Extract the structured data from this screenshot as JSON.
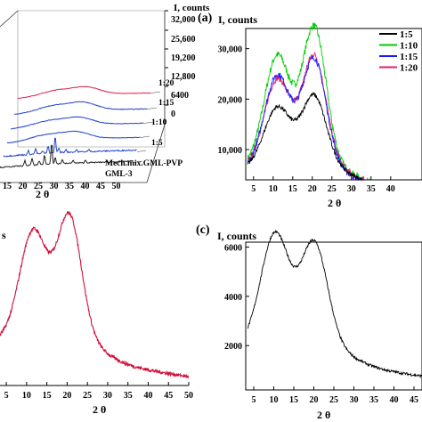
{
  "chart_data": [
    {
      "panel": "",
      "type": "line",
      "ylabel": "I, counts",
      "xlabel": "2 θ",
      "x_ticks": [
        "15",
        "20",
        "25",
        "30",
        "35",
        "40",
        "45",
        "50"
      ],
      "z_ticks": [
        "32,000",
        "25,600",
        "19,200",
        "12,800",
        "6400",
        "0"
      ],
      "series_labels": [
        "1:20",
        "1:15",
        "1:10",
        "1:5",
        "Mech.mix.GML-PVP",
        "GML-3"
      ]
    },
    {
      "panel": "(a)",
      "type": "line",
      "ylabel": "I, counts",
      "xlabel": "2 θ",
      "x_ticks": [
        "5",
        "10",
        "15",
        "20",
        "25",
        "30",
        "35",
        "40"
      ],
      "y_ticks": [
        "10,000",
        "20,000",
        "30,000"
      ],
      "ylim": [
        4000,
        34000
      ],
      "xlim": [
        3,
        48
      ],
      "legend": [
        "1:5",
        "1:10",
        "1:15",
        "1:20"
      ],
      "colors": [
        "#000000",
        "#00cc00",
        "#1a1aff",
        "#e0206a"
      ],
      "peaks": [
        {
          "name": "1:5",
          "base": 7500,
          "p1": 16500,
          "p2": 19000,
          "tail": 5000
        },
        {
          "name": "1:10",
          "base": 7000,
          "p1": 26000,
          "p2": 32000,
          "tail": 7000
        },
        {
          "name": "1:15",
          "base": 6500,
          "p1": 22500,
          "p2": 26000,
          "tail": 6000
        },
        {
          "name": "1:20",
          "base": 6800,
          "p1": 21500,
          "p2": 26500,
          "tail": 6500
        }
      ]
    },
    {
      "panel": "",
      "type": "line",
      "ylabel": "s",
      "xlabel": "2 θ",
      "x_ticks": [
        "5",
        "10",
        "15",
        "20",
        "25",
        "30",
        "35",
        "40",
        "45",
        "50"
      ],
      "color": "#d0103a",
      "peaks": {
        "base": 0.3,
        "p1": 0.78,
        "p2": 0.86,
        "tail": 0.05
      }
    },
    {
      "panel": "(c)",
      "type": "line",
      "ylabel": "I, counts",
      "xlabel": "2 θ",
      "x_ticks": [
        "5",
        "10",
        "15",
        "20",
        "25",
        "30",
        "35",
        "40",
        "45"
      ],
      "y_ticks": [
        "2000",
        "4000",
        "6000"
      ],
      "ylim": [
        200,
        6200
      ],
      "xlim": [
        3,
        47
      ],
      "color": "#000000",
      "peaks": {
        "base": 1700,
        "p1": 4600,
        "p2": 4600,
        "tail": 600
      }
    }
  ]
}
